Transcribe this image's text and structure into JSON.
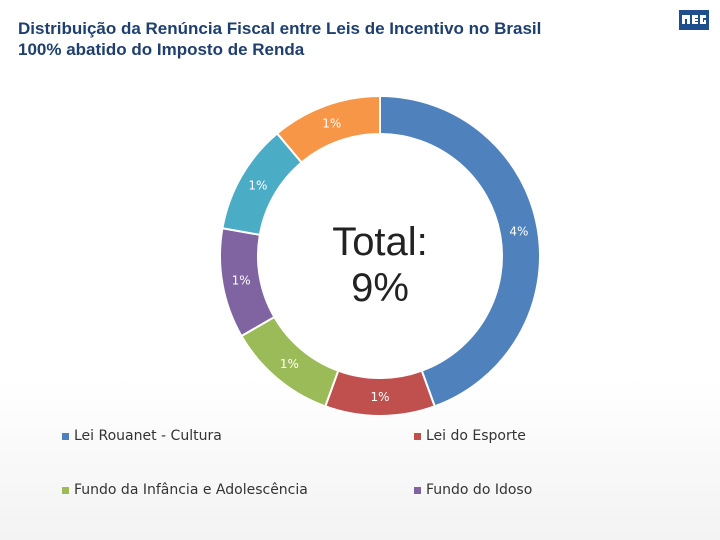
{
  "title": {
    "line1": "Distribuição da Renúncia Fiscal entre Leis de Incentivo no Brasil",
    "line2": "100% abatido do Imposto de Renda"
  },
  "logo_text": "WEG",
  "center_label": {
    "line1": "Total:",
    "line2": "9%"
  },
  "chart_data": {
    "type": "pie",
    "style": "donut",
    "values": [
      4,
      1,
      1,
      1,
      1,
      1
    ],
    "labels": [
      "4%",
      "1%",
      "1%",
      "1%",
      "1%",
      "1%"
    ],
    "colors": [
      "#4f81bd",
      "#c0504d",
      "#9bbb59",
      "#8064a2",
      "#4bacc6",
      "#f79646"
    ],
    "series_names": [
      "Lei Rouanet - Cultura",
      "Lei do Esporte",
      "Fundo da Infância e Adolescência",
      "Fundo do Idoso",
      "",
      ""
    ],
    "legend": [
      {
        "name": "Lei Rouanet - Cultura",
        "color": "#4f81bd"
      },
      {
        "name": "Lei do Esporte",
        "color": "#c0504d"
      },
      {
        "name": "Fundo da Infância e Adolescência",
        "color": "#9bbb59"
      },
      {
        "name": "Fundo do Idoso",
        "color": "#8064a2"
      }
    ],
    "legend_position": "bottom"
  }
}
